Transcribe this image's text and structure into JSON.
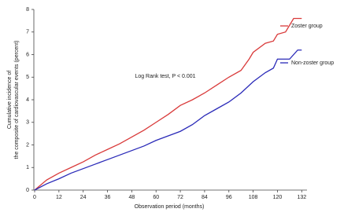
{
  "chart_data": {
    "type": "line",
    "annotation": "Log Rank test, P < 0.001",
    "xlabel": "Observation period (months)",
    "ylabel": [
      "Cumulative incidence of",
      "the composite of cardiovascular events (percent)"
    ],
    "xlim": [
      0,
      135
    ],
    "ylim": [
      0,
      8
    ],
    "xticks": [
      0,
      12,
      24,
      36,
      48,
      60,
      72,
      84,
      96,
      108,
      120,
      132
    ],
    "yticks": [
      0,
      1,
      2,
      3,
      4,
      5,
      6,
      7,
      8
    ],
    "series": [
      {
        "name": "Zoster group",
        "color": "#d93a3a",
        "x": [
          0,
          6,
          12,
          18,
          24,
          30,
          36,
          42,
          48,
          54,
          60,
          66,
          72,
          78,
          84,
          90,
          96,
          102,
          106,
          108,
          114,
          118,
          120,
          124,
          126,
          128,
          132
        ],
        "values": [
          0,
          0.45,
          0.75,
          1.0,
          1.25,
          1.55,
          1.8,
          2.05,
          2.35,
          2.65,
          3.0,
          3.35,
          3.75,
          4.0,
          4.3,
          4.65,
          5.0,
          5.3,
          5.8,
          6.1,
          6.5,
          6.6,
          6.9,
          7.0,
          7.3,
          7.6,
          7.6
        ]
      },
      {
        "name": "Non-zoster group",
        "color": "#2a2ab8",
        "x": [
          0,
          6,
          12,
          18,
          24,
          30,
          36,
          42,
          48,
          54,
          60,
          66,
          72,
          78,
          84,
          90,
          96,
          102,
          108,
          114,
          118,
          120,
          126,
          130,
          132
        ],
        "values": [
          0,
          0.28,
          0.5,
          0.75,
          0.95,
          1.15,
          1.35,
          1.55,
          1.75,
          1.95,
          2.2,
          2.4,
          2.6,
          2.9,
          3.3,
          3.6,
          3.9,
          4.3,
          4.8,
          5.2,
          5.4,
          5.8,
          5.8,
          6.2,
          6.2
        ]
      }
    ]
  }
}
